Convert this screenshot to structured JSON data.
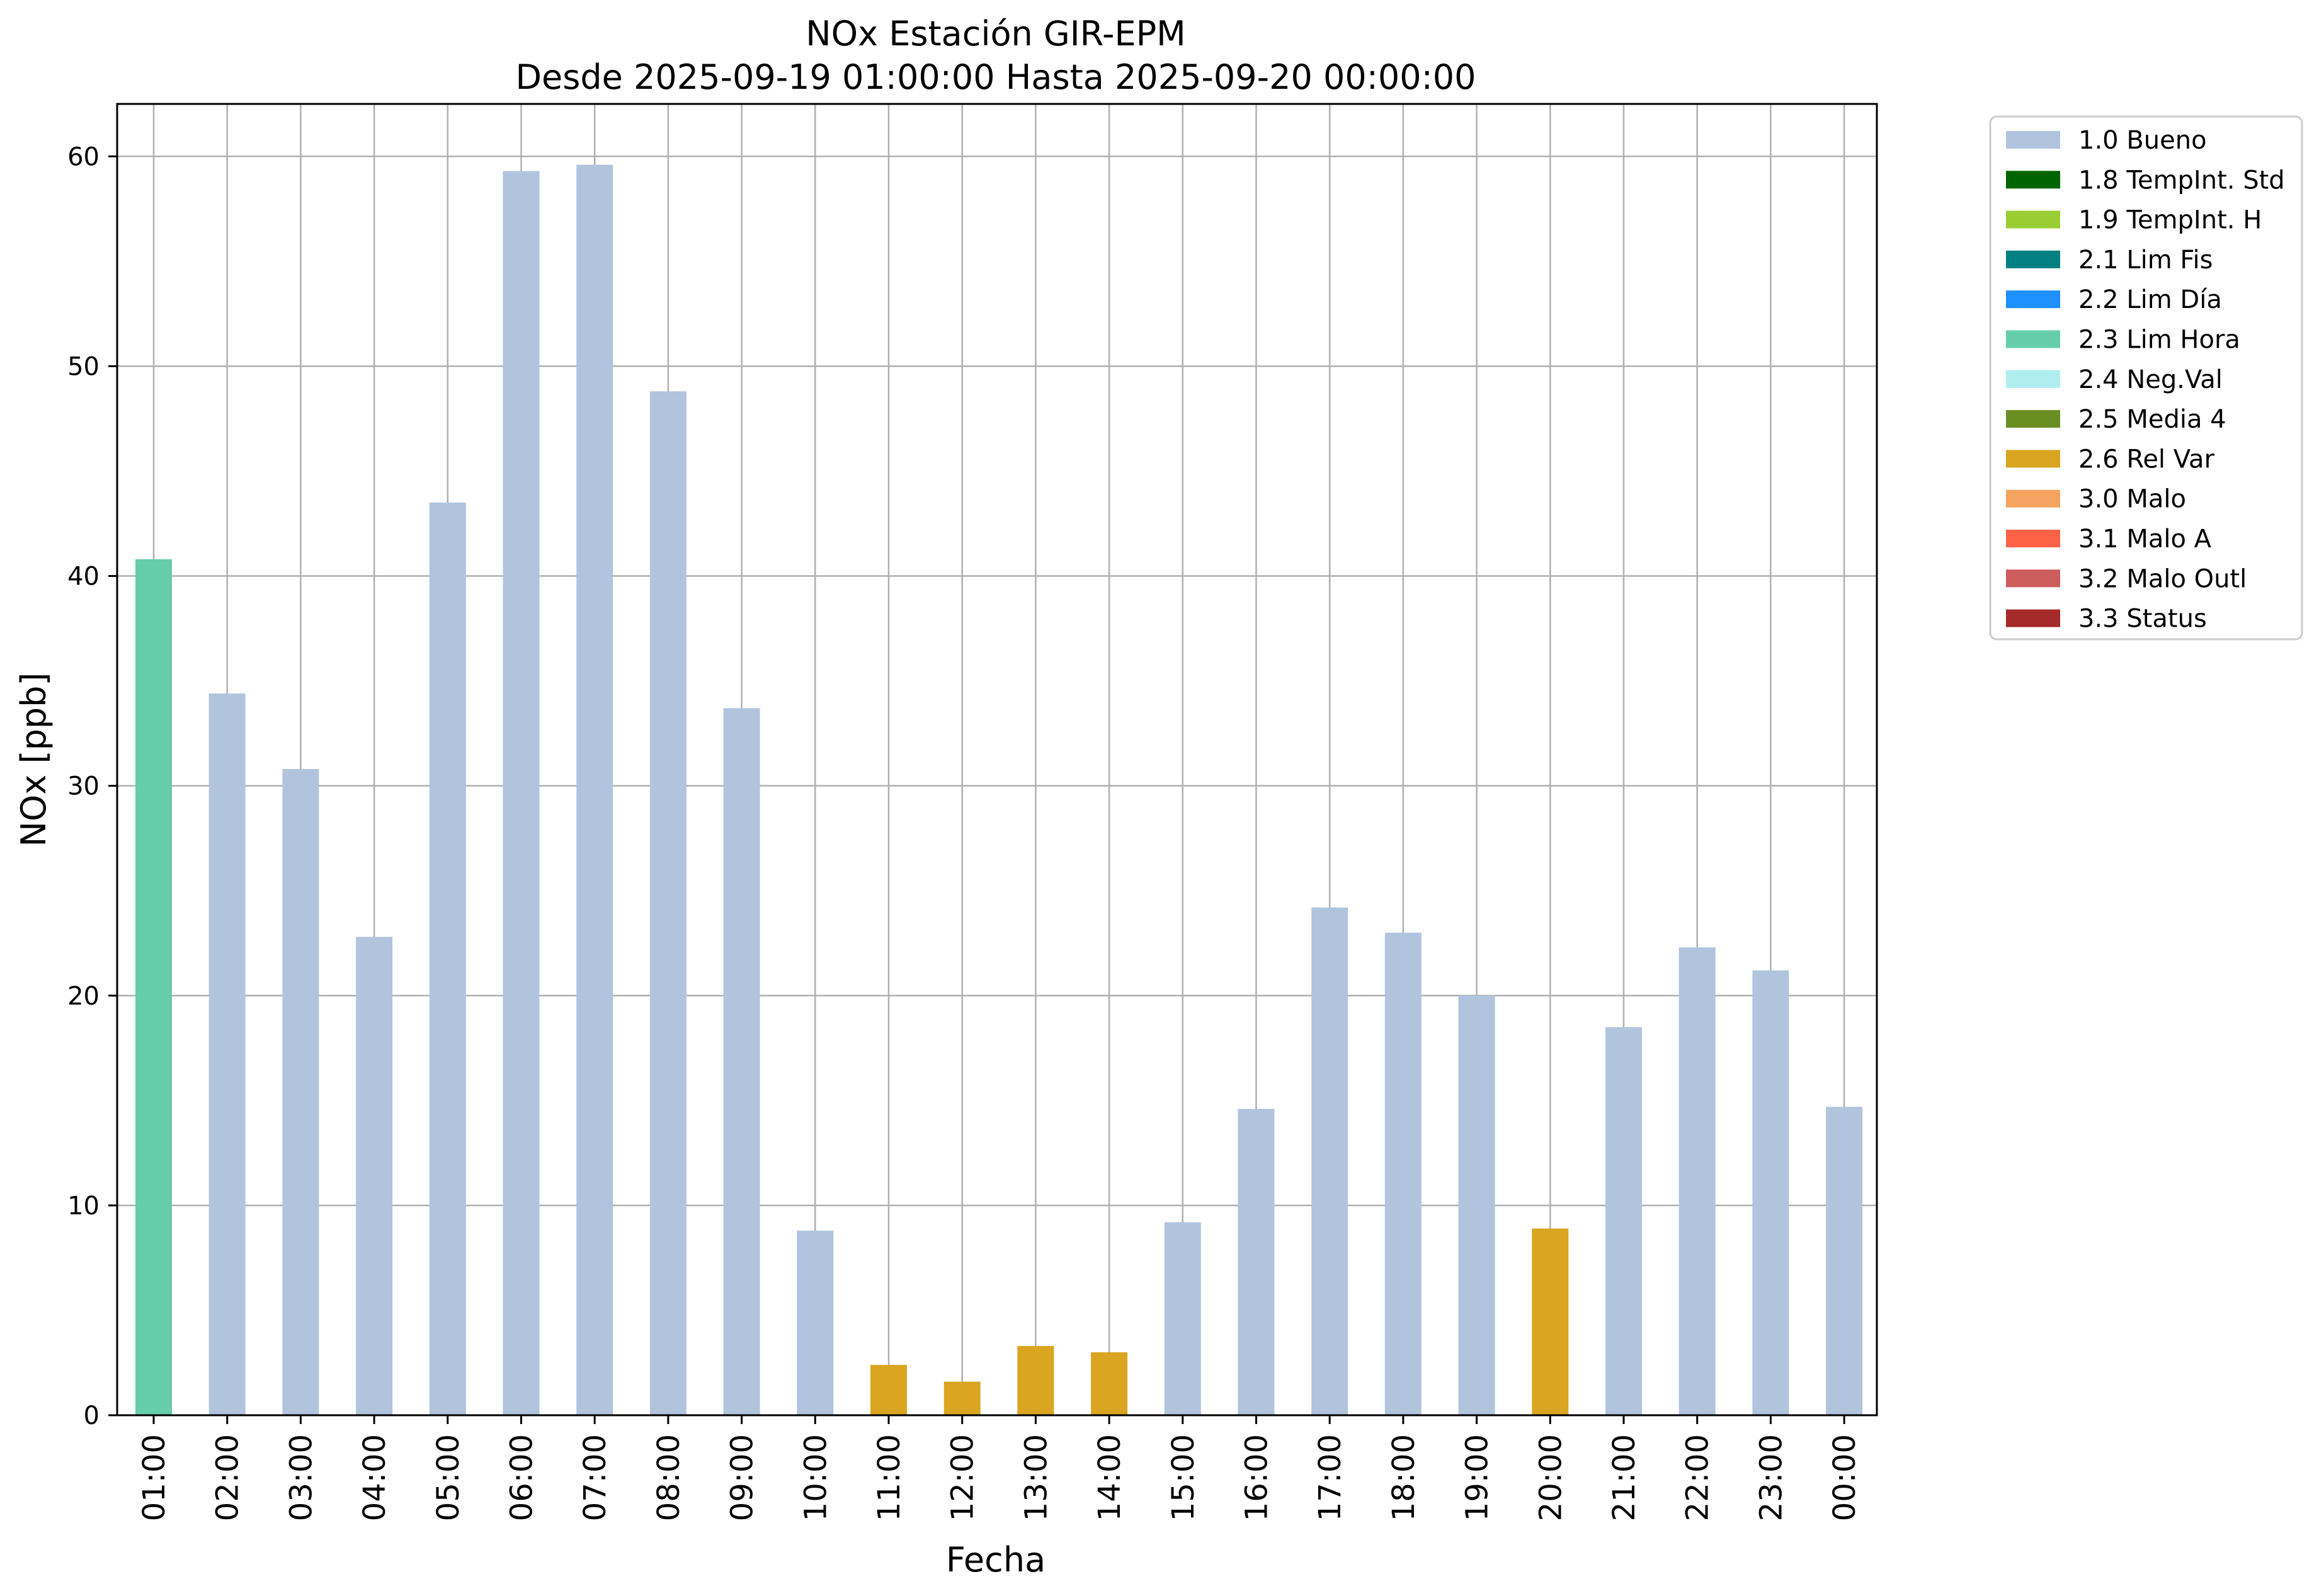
{
  "chart_data": {
    "type": "bar",
    "title": "NOx Estación GIR-EPM",
    "subtitle": "Desde 2025-09-19 01:00:00 Hasta 2025-09-20 00:00:00",
    "xlabel": "Fecha",
    "ylabel": "NOx [ppb]",
    "ylim": [
      0,
      62.5
    ],
    "yticks": [
      0,
      10,
      20,
      30,
      40,
      50,
      60
    ],
    "grid": true,
    "legend_position": "outside-right",
    "categories": [
      "01:00",
      "02:00",
      "03:00",
      "04:00",
      "05:00",
      "06:00",
      "07:00",
      "08:00",
      "09:00",
      "10:00",
      "11:00",
      "12:00",
      "13:00",
      "14:00",
      "15:00",
      "16:00",
      "17:00",
      "18:00",
      "19:00",
      "20:00",
      "21:00",
      "22:00",
      "23:00",
      "00:00"
    ],
    "values": [
      40.8,
      34.4,
      30.8,
      22.8,
      43.5,
      59.3,
      59.6,
      48.8,
      33.7,
      8.8,
      2.4,
      1.6,
      3.3,
      3.0,
      9.2,
      14.6,
      24.2,
      23.0,
      20.0,
      8.9,
      18.5,
      22.3,
      21.2,
      14.7
    ],
    "flags": [
      "2.3 Lim Hora",
      "1.0 Bueno",
      "1.0 Bueno",
      "1.0 Bueno",
      "1.0 Bueno",
      "1.0 Bueno",
      "1.0 Bueno",
      "1.0 Bueno",
      "1.0 Bueno",
      "1.0 Bueno",
      "2.6 Rel Var",
      "2.6 Rel Var",
      "2.6 Rel Var",
      "2.6 Rel Var",
      "1.0 Bueno",
      "1.0 Bueno",
      "1.0 Bueno",
      "1.0 Bueno",
      "1.0 Bueno",
      "2.6 Rel Var",
      "1.0 Bueno",
      "1.0 Bueno",
      "1.0 Bueno",
      "1.0 Bueno"
    ],
    "legend": [
      {
        "label": "1.0 Bueno",
        "color": "#b0c4de"
      },
      {
        "label": "1.8 TempInt. Std",
        "color": "#006400"
      },
      {
        "label": "1.9 TempInt. H",
        "color": "#9acd32"
      },
      {
        "label": "2.1 Lim Fis",
        "color": "#008080"
      },
      {
        "label": "2.2 Lim Día",
        "color": "#1e90ff"
      },
      {
        "label": "2.3 Lim Hora",
        "color": "#66cdaa"
      },
      {
        "label": "2.4 Neg.Val",
        "color": "#afeeee"
      },
      {
        "label": "2.5 Media 4",
        "color": "#6b8e23"
      },
      {
        "label": "2.6 Rel Var",
        "color": "#daa520"
      },
      {
        "label": "3.0 Malo",
        "color": "#f4a460"
      },
      {
        "label": "3.1 Malo A",
        "color": "#ff6347"
      },
      {
        "label": "3.2 Malo Outl",
        "color": "#cd5c5c"
      },
      {
        "label": "3.3 Status",
        "color": "#a52a2a"
      }
    ]
  }
}
